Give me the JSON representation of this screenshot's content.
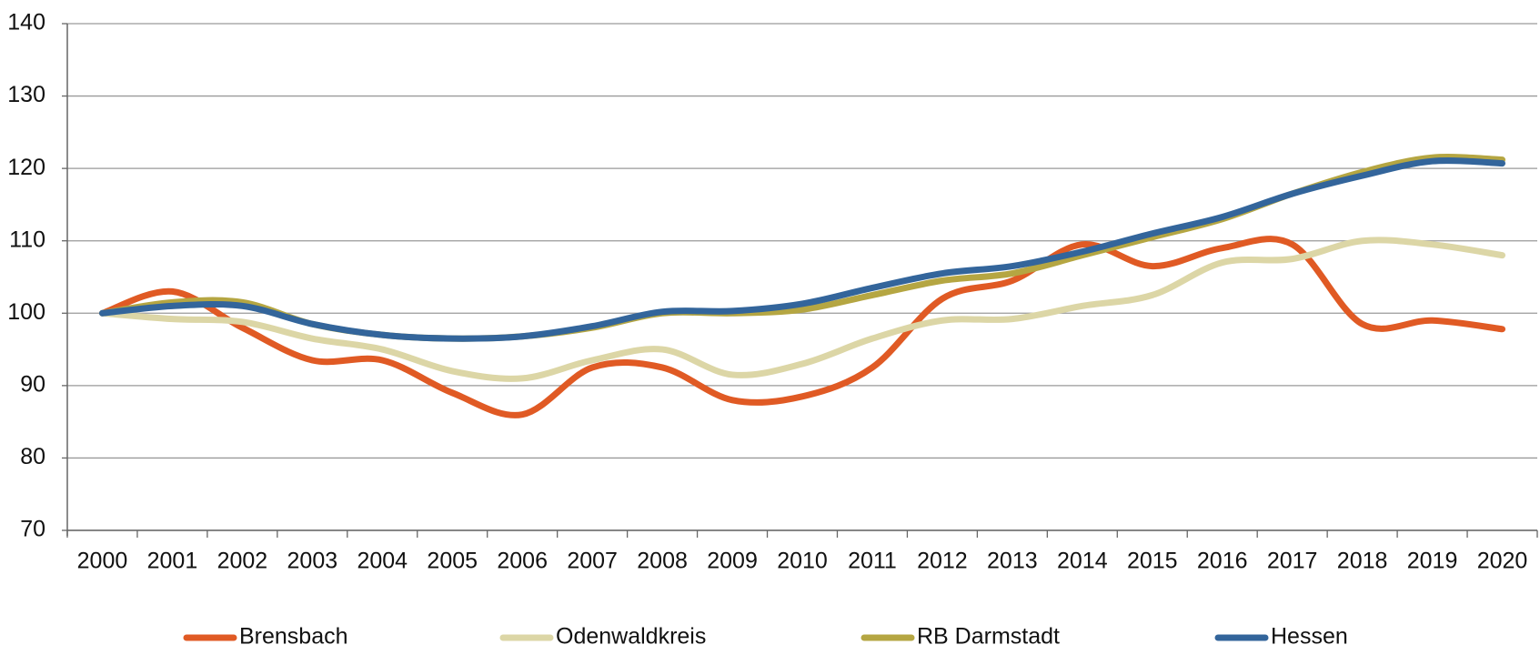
{
  "chart_data": {
    "type": "line",
    "categories": [
      "2000",
      "2001",
      "2002",
      "2003",
      "2004",
      "2005",
      "2006",
      "2007",
      "2008",
      "2009",
      "2010",
      "2011",
      "2012",
      "2013",
      "2014",
      "2015",
      "2016",
      "2017",
      "2018",
      "2019",
      "2020"
    ],
    "series": [
      {
        "name": "Brensbach",
        "color": "#e05a24",
        "values": [
          100,
          103,
          98,
          93.5,
          93.5,
          89,
          86,
          92.5,
          92.5,
          88,
          88.5,
          92.5,
          102,
          104.5,
          109.5,
          106.5,
          109,
          109.5,
          98.5,
          99,
          97.8
        ]
      },
      {
        "name": "Odenwaldkreis",
        "color": "#dcd6a6",
        "values": [
          100,
          99.2,
          98.8,
          96.5,
          95,
          92,
          91,
          93.5,
          95,
          91.5,
          93,
          96.5,
          99,
          99.2,
          101,
          102.5,
          107,
          107.5,
          110,
          109.5,
          108
        ]
      },
      {
        "name": "RB Darmstadt",
        "color": "#b5a642",
        "values": [
          100,
          101.5,
          101.5,
          98.5,
          97,
          96.5,
          96.8,
          98,
          100,
          100,
          100.5,
          102.5,
          104.5,
          105.5,
          108,
          110.5,
          113,
          116.5,
          119.5,
          121.5,
          121.2
        ]
      },
      {
        "name": "Hessen",
        "color": "#33659b",
        "values": [
          100,
          101,
          101,
          98.5,
          97,
          96.5,
          96.8,
          98.2,
          100.2,
          100.3,
          101.3,
          103.5,
          105.5,
          106.5,
          108.5,
          111,
          113.3,
          116.5,
          119,
          121,
          120.7
        ]
      }
    ],
    "ylim": [
      70,
      140
    ],
    "yticks": [
      70,
      80,
      90,
      100,
      110,
      120,
      130,
      140
    ],
    "grid": true,
    "legend": "bottom"
  }
}
